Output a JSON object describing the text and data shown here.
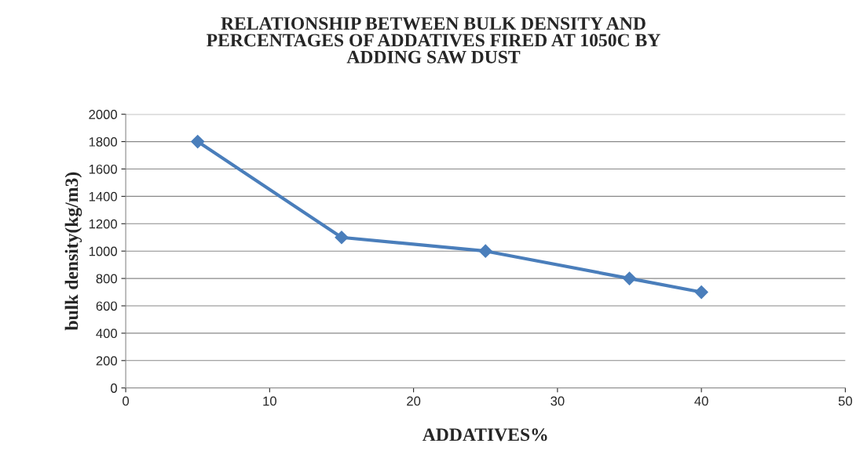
{
  "chart_data": {
    "type": "line",
    "title": "RELATIONSHIP BETWEEN BULK DENSITY AND\nPERCENTAGES OF ADDATIVES FIRED AT 1050C BY\nADDING SAW DUST",
    "xlabel": "ADDATIVES%",
    "ylabel": "bulk density(kg/m3)",
    "x": [
      5,
      15,
      25,
      35,
      40
    ],
    "series": [
      {
        "color": "#4a7ebb",
        "values": [
          1800,
          1100,
          1000,
          800,
          700
        ]
      }
    ],
    "xlim": [
      0,
      50
    ],
    "xticks": [
      0,
      10,
      20,
      30,
      40,
      50
    ],
    "ylim": [
      0,
      2000
    ],
    "yticks": [
      0,
      200,
      400,
      600,
      800,
      1000,
      1200,
      1400,
      1600,
      1800,
      2000
    ],
    "grid": "y",
    "marker": "diamond",
    "line_style": "solid",
    "legend": false
  }
}
